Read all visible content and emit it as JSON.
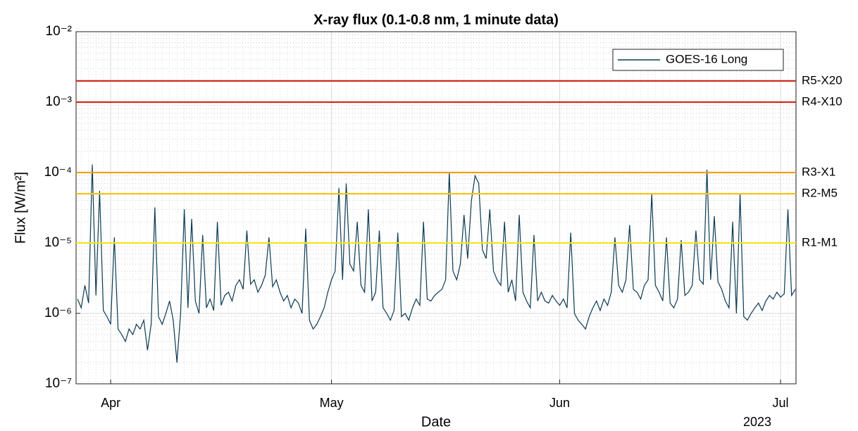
{
  "chart_data": {
    "type": "line",
    "title": "X-ray flux (0.1-0.8 nm, 1 minute data)",
    "xlabel": "Date",
    "x_year_label": "2023",
    "ylabel": "Flux [W/m²]",
    "log_y": true,
    "grid": true,
    "minor_grid": true,
    "legend": "upper right",
    "xlim": [
      86.3,
      184.1
    ],
    "xticks": [
      {
        "value": 91,
        "label": "Apr"
      },
      {
        "value": 121,
        "label": "May"
      },
      {
        "value": 152,
        "label": "Jun"
      },
      {
        "value": 182,
        "label": "Jul"
      }
    ],
    "ylim": [
      1e-07,
      0.01
    ],
    "yticks": [
      {
        "value": 1e-07,
        "label": "10⁻⁷"
      },
      {
        "value": 1e-06,
        "label": "10⁻⁶"
      },
      {
        "value": 1e-05,
        "label": "10⁻⁵"
      },
      {
        "value": 0.0001,
        "label": "10⁻⁴"
      },
      {
        "value": 0.001,
        "label": "10⁻³"
      },
      {
        "value": 0.01,
        "label": "10⁻²"
      }
    ],
    "thresholds": [
      {
        "label": "R5-X20",
        "value": 0.002,
        "color": "#cc2a1c"
      },
      {
        "label": "R4-X10",
        "value": 0.001,
        "color": "#d42a1c"
      },
      {
        "label": "R3-X1",
        "value": 0.0001,
        "color": "#f0a020"
      },
      {
        "label": "R2-M5",
        "value": 5e-05,
        "color": "#f5c518"
      },
      {
        "label": "R1-M1",
        "value": 1e-05,
        "color": "#f2e41e"
      }
    ],
    "x": [
      86.5,
      87,
      87.5,
      88,
      88.5,
      89,
      89.5,
      90,
      90.5,
      91,
      91.5,
      92,
      92.5,
      93,
      93.5,
      94,
      94.5,
      95,
      95.5,
      96,
      96.5,
      97,
      97.5,
      98,
      98.5,
      99,
      99.5,
      100,
      100.5,
      101,
      101.5,
      102,
      102.5,
      103,
      103.5,
      104,
      104.5,
      105,
      105.5,
      106,
      106.5,
      107,
      107.5,
      108,
      108.5,
      109,
      109.5,
      110,
      110.5,
      111,
      111.5,
      112,
      112.5,
      113,
      113.5,
      114,
      114.5,
      115,
      115.5,
      116,
      116.5,
      117,
      117.5,
      118,
      118.5,
      119,
      119.5,
      120,
      120.5,
      121,
      121.5,
      122,
      122.5,
      123,
      123.5,
      124,
      124.5,
      125,
      125.5,
      126,
      126.5,
      127,
      127.5,
      128,
      128.5,
      129,
      129.5,
      130,
      130.5,
      131,
      131.5,
      132,
      132.5,
      133,
      133.5,
      134,
      134.5,
      135,
      135.5,
      136,
      136.5,
      137,
      137.5,
      138,
      138.5,
      139,
      139.5,
      140,
      140.5,
      141,
      141.5,
      142,
      142.5,
      143,
      143.5,
      144,
      144.5,
      145,
      145.5,
      146,
      146.5,
      147,
      147.5,
      148,
      148.5,
      149,
      149.5,
      150,
      150.5,
      151,
      151.5,
      152,
      152.5,
      153,
      153.5,
      154,
      154.5,
      155,
      155.5,
      156,
      156.5,
      157,
      157.5,
      158,
      158.5,
      159,
      159.5,
      160,
      160.5,
      161,
      161.5,
      162,
      162.5,
      163,
      163.5,
      164,
      164.5,
      165,
      165.5,
      166,
      166.5,
      167,
      167.5,
      168,
      168.5,
      169,
      169.5,
      170,
      170.5,
      171,
      171.5,
      172,
      172.5,
      173,
      173.5,
      174,
      174.5,
      175,
      175.5,
      176,
      176.5,
      177,
      177.5,
      178,
      178.5,
      179,
      179.5,
      180,
      180.5,
      181,
      181.5,
      182,
      182.5,
      183,
      183.5,
      184
    ],
    "series": [
      {
        "name": "GOES-16 Long",
        "color": "#0b3a52",
        "values": [
          1.6e-06,
          1.2e-06,
          2.5e-06,
          1.4e-06,
          0.00013,
          1.8e-06,
          5.5e-05,
          1.1e-06,
          9e-07,
          7e-07,
          1.2e-05,
          6e-07,
          5e-07,
          4e-07,
          6e-07,
          5e-07,
          7e-07,
          6e-07,
          8e-07,
          3e-07,
          7e-07,
          3.2e-05,
          9e-07,
          7e-07,
          1e-06,
          1.5e-06,
          8e-07,
          2e-07,
          1e-06,
          3e-05,
          1.2e-06,
          2.2e-05,
          1.5e-06,
          1e-06,
          1.3e-05,
          1.2e-06,
          1.6e-06,
          1.1e-06,
          2e-05,
          1.3e-06,
          1.8e-06,
          2e-06,
          1.5e-06,
          2.5e-06,
          3e-06,
          2.2e-06,
          1.5e-05,
          2.6e-06,
          3e-06,
          2e-06,
          2.5e-06,
          3.5e-06,
          1.2e-05,
          2.4e-06,
          3e-06,
          2e-06,
          1.5e-06,
          1.8e-06,
          1.2e-06,
          1.6e-06,
          1.4e-06,
          1e-06,
          1.6e-05,
          8e-07,
          6e-07,
          7e-07,
          9e-07,
          1.2e-06,
          2e-06,
          3e-06,
          4e-06,
          6e-05,
          3e-06,
          7e-05,
          5e-06,
          4e-06,
          2e-05,
          2.5e-06,
          2e-06,
          3e-05,
          1.5e-06,
          2e-06,
          1.5e-05,
          1.2e-06,
          1e-06,
          8e-07,
          1.1e-06,
          1.4e-05,
          9e-07,
          1e-06,
          8e-07,
          1.2e-06,
          1.6e-06,
          1.3e-06,
          2e-05,
          1.6e-06,
          1.5e-06,
          1.8e-06,
          2e-06,
          2.2e-06,
          3e-06,
          0.0001,
          4e-06,
          3e-06,
          5e-06,
          2.5e-05,
          6e-06,
          4e-05,
          9e-05,
          7e-05,
          8e-06,
          6e-06,
          3e-05,
          4e-06,
          3e-06,
          2.5e-06,
          2e-05,
          2e-06,
          3e-06,
          1.5e-06,
          2.5e-05,
          2e-06,
          1.5e-06,
          1.2e-06,
          1.3e-05,
          1.5e-06,
          2e-06,
          1.5e-06,
          1.4e-06,
          1.8e-06,
          1.5e-06,
          1.3e-06,
          1.6e-06,
          1.2e-06,
          1.4e-05,
          1e-06,
          8e-07,
          7e-07,
          6e-07,
          9e-07,
          1.2e-06,
          1.5e-06,
          1.1e-06,
          1.6e-06,
          1.3e-06,
          2e-06,
          1.2e-05,
          2.5e-06,
          2e-06,
          3e-06,
          1.8e-05,
          2.2e-06,
          2e-06,
          1.6e-06,
          2.5e-06,
          3e-06,
          5e-05,
          2.5e-06,
          2e-06,
          1.5e-06,
          1.2e-05,
          1.4e-06,
          1.2e-06,
          1.6e-06,
          1.1e-05,
          1.8e-06,
          2e-06,
          2.5e-06,
          1.5e-05,
          3e-06,
          2.6e-06,
          0.00011,
          3e-06,
          2.4e-05,
          2.8e-06,
          2.2e-06,
          1.5e-06,
          1.2e-06,
          2e-05,
          1e-06,
          5e-05,
          9e-07,
          8e-07,
          1e-06,
          1.2e-06,
          1.4e-06,
          1.1e-06,
          1.5e-06,
          1.8e-06,
          1.6e-06,
          2e-06,
          1.7e-06,
          1.9e-06,
          3e-05,
          1.8e-06,
          2.2e-06
        ]
      }
    ]
  }
}
